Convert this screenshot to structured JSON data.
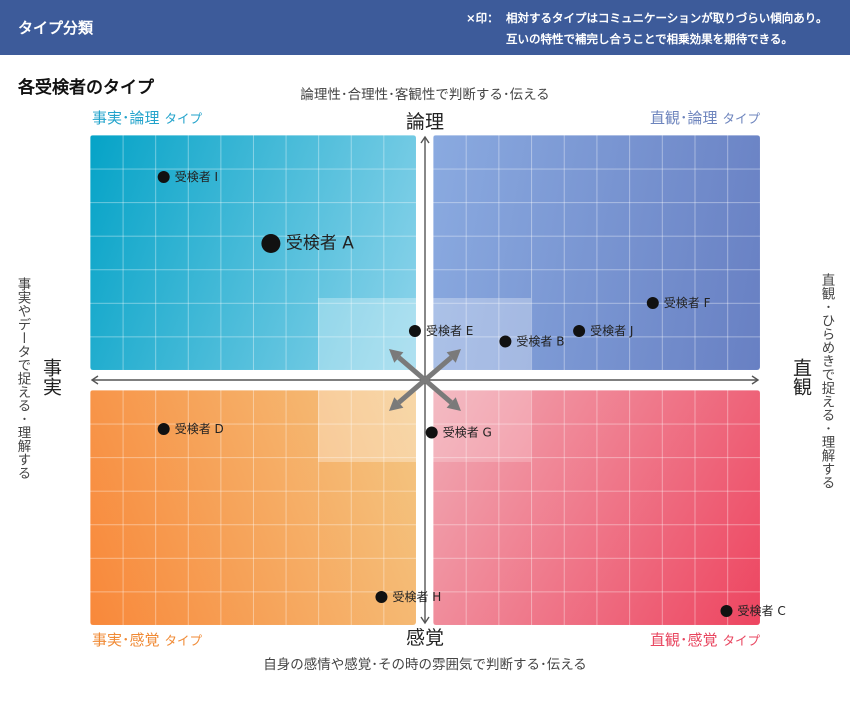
{
  "header": {
    "title": "タイプ分類",
    "note_mark": "×印：",
    "note_lines": [
      "相対するタイプはコミュニケーションが取りづらい傾向あり。",
      "互いの特性で補完し合うことで相乗効果を期待できる。"
    ]
  },
  "chart_data": {
    "type": "scatter",
    "title": "各受検者のタイプ",
    "axes": {
      "top": {
        "label": "論理",
        "description": "論理性･合理性･客観性で判断する･伝える"
      },
      "bottom": {
        "label": "感覚",
        "description": "自身の感情や感覚･その時の雰囲気で判断する･伝える"
      },
      "left": {
        "label": "事実",
        "description": "事実やデータで捉える･理解する"
      },
      "right": {
        "label": "直観",
        "description": "直観･ひらめきで捉える･理解する"
      }
    },
    "xlim": [
      -10,
      10
    ],
    "ylim": [
      -7,
      7
    ],
    "grid": true,
    "quadrants": [
      {
        "position": "top-left",
        "name": "事実･論理",
        "suffix": "タイプ",
        "label_color": "#22a3cb",
        "fill": [
          "#05a3c7",
          "#8ed4eb"
        ]
      },
      {
        "position": "top-right",
        "name": "直観･論理",
        "suffix": "タイプ",
        "label_color": "#6d84bd",
        "fill": [
          "#8aaae0",
          "#6880c3"
        ]
      },
      {
        "position": "bottom-left",
        "name": "事実･感覚",
        "suffix": "タイプ",
        "label_color": "#f08a35",
        "fill": [
          "#f8883a",
          "#f4c682"
        ]
      },
      {
        "position": "bottom-right",
        "name": "直観･感覚",
        "suffix": "タイプ",
        "label_color": "#e8455f",
        "fill": [
          "#f1aab4",
          "#ed4560"
        ]
      }
    ],
    "points": [
      {
        "label": "受検者 A",
        "x": -4.6,
        "y": 3.9,
        "highlighted": true
      },
      {
        "label": "受検者 B",
        "x": 2.4,
        "y": 1.1
      },
      {
        "label": "受検者 C",
        "x": 9.0,
        "y": -6.6
      },
      {
        "label": "受検者 D",
        "x": -7.8,
        "y": -1.4
      },
      {
        "label": "受検者 E",
        "x": -0.3,
        "y": 1.4
      },
      {
        "label": "受検者 F",
        "x": 6.8,
        "y": 2.2
      },
      {
        "label": "受検者 G",
        "x": 0.2,
        "y": -1.5
      },
      {
        "label": "受検者 H",
        "x": -1.3,
        "y": -6.2
      },
      {
        "label": "受検者 I",
        "x": -7.8,
        "y": 5.8
      },
      {
        "label": "受検者 J",
        "x": 4.6,
        "y": 1.4
      }
    ]
  },
  "colors": {
    "header_bg": "#3d5b9a",
    "header_text": "#ffffff",
    "point": "#111111",
    "axis": "#555555",
    "cross_arrows": "#7a7a7a",
    "description_text": "#444444"
  }
}
